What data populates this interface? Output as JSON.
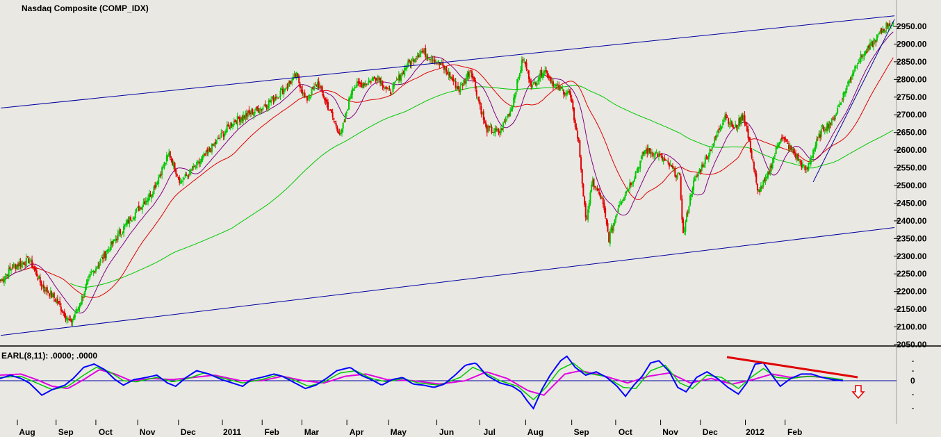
{
  "chart_data": [
    {
      "type": "candlestick",
      "title": "Nasdaq Composite (COMP_IDX)",
      "ylim": [
        2050,
        3000
      ],
      "y_ticks": [
        "2050.00",
        "2100.00",
        "2150.00",
        "2200.00",
        "2250.00",
        "2300.00",
        "2350.00",
        "2400.00",
        "2450.00",
        "2500.00",
        "2550.00",
        "2600.00",
        "2650.00",
        "2700.00",
        "2750.00",
        "2800.00",
        "2850.00",
        "2900.00",
        "2950.00"
      ],
      "y_tick_values": [
        2050,
        2100,
        2150,
        2200,
        2250,
        2300,
        2350,
        2400,
        2450,
        2500,
        2550,
        2600,
        2650,
        2700,
        2750,
        2800,
        2850,
        2900,
        2950
      ],
      "x_months": [
        "Aug",
        "Sep",
        "Oct",
        "Nov",
        "Dec",
        "2011",
        "Feb",
        "Mar",
        "Apr",
        "May",
        "Jun",
        "Jul",
        "Aug",
        "Sep",
        "Oct",
        "Nov",
        "Dec",
        "2012",
        "Feb"
      ],
      "x_month_index": [
        10,
        47,
        85,
        125,
        164,
        206,
        244,
        282,
        325,
        365,
        411,
        452,
        496,
        540,
        582,
        625,
        663,
        706,
        744
      ],
      "bars": 770,
      "colors": {
        "up": "#00c800",
        "down": "#e00000",
        "ma_fast": "#800080",
        "ma_mid": "#e00000",
        "ma_slow": "#00c800",
        "trendline": "#0000a0"
      },
      "close_path": [
        [
          0,
          2230
        ],
        [
          10,
          2270
        ],
        [
          25,
          2290
        ],
        [
          35,
          2220
        ],
        [
          48,
          2175
        ],
        [
          60,
          2110
        ],
        [
          66,
          2150
        ],
        [
          78,
          2250
        ],
        [
          95,
          2330
        ],
        [
          110,
          2400
        ],
        [
          130,
          2480
        ],
        [
          145,
          2590
        ],
        [
          155,
          2510
        ],
        [
          170,
          2560
        ],
        [
          185,
          2620
        ],
        [
          200,
          2680
        ],
        [
          212,
          2700
        ],
        [
          225,
          2720
        ],
        [
          240,
          2760
        ],
        [
          255,
          2810
        ],
        [
          263,
          2740
        ],
        [
          273,
          2790
        ],
        [
          285,
          2700
        ],
        [
          293,
          2640
        ],
        [
          303,
          2780
        ],
        [
          315,
          2790
        ],
        [
          325,
          2810
        ],
        [
          335,
          2760
        ],
        [
          350,
          2840
        ],
        [
          362,
          2880
        ],
        [
          373,
          2860
        ],
        [
          385,
          2820
        ],
        [
          395,
          2770
        ],
        [
          405,
          2830
        ],
        [
          418,
          2660
        ],
        [
          430,
          2650
        ],
        [
          440,
          2720
        ],
        [
          450,
          2860
        ],
        [
          458,
          2780
        ],
        [
          468,
          2830
        ],
        [
          478,
          2780
        ],
        [
          490,
          2760
        ],
        [
          498,
          2620
        ],
        [
          504,
          2400
        ],
        [
          510,
          2510
        ],
        [
          518,
          2460
        ],
        [
          524,
          2350
        ],
        [
          533,
          2450
        ],
        [
          545,
          2520
        ],
        [
          555,
          2600
        ],
        [
          565,
          2590
        ],
        [
          575,
          2560
        ],
        [
          585,
          2520
        ],
        [
          588,
          2360
        ],
        [
          596,
          2500
        ],
        [
          605,
          2560
        ],
        [
          614,
          2620
        ],
        [
          624,
          2700
        ],
        [
          632,
          2660
        ],
        [
          640,
          2700
        ],
        [
          648,
          2570
        ],
        [
          652,
          2480
        ],
        [
          660,
          2520
        ],
        [
          672,
          2640
        ],
        [
          684,
          2590
        ],
        [
          694,
          2540
        ],
        [
          700,
          2600
        ],
        [
          708,
          2660
        ],
        [
          716,
          2680
        ],
        [
          724,
          2740
        ],
        [
          730,
          2790
        ],
        [
          738,
          2850
        ],
        [
          746,
          2880
        ],
        [
          753,
          2910
        ],
        [
          760,
          2940
        ],
        [
          765,
          2960
        ],
        [
          770,
          2950
        ]
      ],
      "trendlines": [
        {
          "from": [
            0,
            2719
          ],
          "to": [
            770,
            2980
          ],
          "label": "upper channel"
        },
        {
          "from": [
            0,
            2076
          ],
          "to": [
            770,
            2381
          ],
          "label": "lower channel"
        },
        {
          "from": [
            700,
            2510
          ],
          "to": [
            770,
            2970
          ],
          "label": "short-term uptrend"
        }
      ]
    },
    {
      "type": "line",
      "title": "EARL(8,11): .0000; .0000",
      "zero_label": "0",
      "side_ticks": [
        ".",
        ".",
        ".",
        "."
      ],
      "colors": {
        "fast": "#0000ff",
        "slow": "#00c800",
        "signal": "#e000e0",
        "zero": "#0000a0",
        "divergence": "#e00000",
        "arrow": "#e00000"
      },
      "fast_path": [
        [
          0,
          0.2
        ],
        [
          10,
          0.5
        ],
        [
          20,
          0.2
        ],
        [
          28,
          -0.2
        ],
        [
          40,
          -1.3
        ],
        [
          50,
          -0.8
        ],
        [
          62,
          -0.4
        ],
        [
          70,
          0.2
        ],
        [
          80,
          1.2
        ],
        [
          90,
          1.5
        ],
        [
          100,
          1.0
        ],
        [
          110,
          0.1
        ],
        [
          118,
          -0.4
        ],
        [
          128,
          0.1
        ],
        [
          140,
          0.3
        ],
        [
          150,
          0.5
        ],
        [
          160,
          -0.2
        ],
        [
          168,
          -0.5
        ],
        [
          178,
          0.3
        ],
        [
          188,
          0.9
        ],
        [
          200,
          0.6
        ],
        [
          212,
          0.1
        ],
        [
          222,
          -0.2
        ],
        [
          232,
          -0.5
        ],
        [
          240,
          0.1
        ],
        [
          250,
          0.3
        ],
        [
          262,
          0.6
        ],
        [
          270,
          0.4
        ],
        [
          282,
          -0.2
        ],
        [
          292,
          -0.7
        ],
        [
          302,
          -0.4
        ],
        [
          312,
          0.2
        ],
        [
          322,
          0.9
        ],
        [
          335,
          1.2
        ],
        [
          345,
          0.5
        ],
        [
          355,
          0.1
        ],
        [
          365,
          -0.4
        ],
        [
          375,
          0.1
        ],
        [
          385,
          0.3
        ],
        [
          395,
          -0.3
        ],
        [
          405,
          -0.4
        ],
        [
          415,
          -0.6
        ],
        [
          425,
          -0.3
        ],
        [
          435,
          0.5
        ],
        [
          445,
          1.4
        ],
        [
          455,
          1.6
        ],
        [
          465,
          0.5
        ],
        [
          478,
          -0.2
        ],
        [
          490,
          -0.5
        ],
        [
          498,
          -1.0
        ],
        [
          504,
          -1.8
        ],
        [
          510,
          -2.5
        ],
        [
          518,
          -0.8
        ],
        [
          526,
          0.5
        ],
        [
          536,
          1.8
        ],
        [
          542,
          2.2
        ],
        [
          550,
          1.2
        ],
        [
          560,
          0.5
        ],
        [
          570,
          0.8
        ],
        [
          580,
          0.3
        ],
        [
          590,
          -0.5
        ],
        [
          598,
          -1.4
        ],
        [
          606,
          -0.4
        ],
        [
          614,
          0.4
        ],
        [
          622,
          1.6
        ],
        [
          630,
          1.8
        ],
        [
          640,
          0.8
        ],
        [
          648,
          -0.6
        ],
        [
          656,
          -1.0
        ],
        [
          666,
          0.3
        ],
        [
          676,
          0.8
        ],
        [
          686,
          0.2
        ],
        [
          696,
          -0.6
        ],
        [
          706,
          -1.2
        ],
        [
          714,
          -0.2
        ],
        [
          722,
          1.5
        ],
        [
          730,
          1.6
        ],
        [
          738,
          0.5
        ],
        [
          746,
          -0.5
        ],
        [
          756,
          0.2
        ],
        [
          766,
          0.6
        ],
        [
          776,
          0.6
        ],
        [
          786,
          0.3
        ],
        [
          796,
          0.1
        ],
        [
          806,
          0.0
        ]
      ],
      "slow_path": [
        [
          0,
          0.3
        ],
        [
          20,
          0.4
        ],
        [
          35,
          -0.2
        ],
        [
          50,
          -0.8
        ],
        [
          65,
          -0.5
        ],
        [
          80,
          0.5
        ],
        [
          92,
          1.2
        ],
        [
          105,
          0.8
        ],
        [
          118,
          0.0
        ],
        [
          130,
          -0.1
        ],
        [
          150,
          0.3
        ],
        [
          165,
          -0.1
        ],
        [
          180,
          0.2
        ],
        [
          195,
          0.7
        ],
        [
          210,
          0.3
        ],
        [
          232,
          -0.2
        ],
        [
          250,
          0.1
        ],
        [
          265,
          0.5
        ],
        [
          280,
          0.1
        ],
        [
          295,
          -0.5
        ],
        [
          310,
          -0.1
        ],
        [
          325,
          0.7
        ],
        [
          340,
          0.9
        ],
        [
          355,
          0.2
        ],
        [
          370,
          -0.1
        ],
        [
          385,
          0.2
        ],
        [
          400,
          -0.2
        ],
        [
          420,
          -0.4
        ],
        [
          440,
          0.3
        ],
        [
          452,
          1.2
        ],
        [
          462,
          0.8
        ],
        [
          478,
          0.0
        ],
        [
          495,
          -0.5
        ],
        [
          510,
          -1.7
        ],
        [
          522,
          -0.6
        ],
        [
          535,
          1.0
        ],
        [
          548,
          1.6
        ],
        [
          560,
          0.7
        ],
        [
          578,
          0.4
        ],
        [
          596,
          -0.6
        ],
        [
          608,
          -0.7
        ],
        [
          622,
          0.9
        ],
        [
          636,
          1.4
        ],
        [
          650,
          -0.2
        ],
        [
          662,
          -0.7
        ],
        [
          676,
          0.5
        ],
        [
          690,
          0.3
        ],
        [
          706,
          -0.7
        ],
        [
          718,
          0.3
        ],
        [
          730,
          1.1
        ],
        [
          742,
          0.3
        ],
        [
          756,
          0.2
        ],
        [
          772,
          0.4
        ],
        [
          790,
          0.3
        ],
        [
          806,
          0.1
        ]
      ],
      "signal_path": [
        [
          0,
          0.5
        ],
        [
          20,
          0.6
        ],
        [
          35,
          0.1
        ],
        [
          50,
          -0.5
        ],
        [
          65,
          -0.7
        ],
        [
          80,
          0.1
        ],
        [
          95,
          1.0
        ],
        [
          110,
          0.6
        ],
        [
          125,
          0.0
        ],
        [
          145,
          0.2
        ],
        [
          165,
          0.1
        ],
        [
          185,
          0.3
        ],
        [
          205,
          0.5
        ],
        [
          230,
          0.0
        ],
        [
          250,
          0.0
        ],
        [
          270,
          0.4
        ],
        [
          290,
          0.0
        ],
        [
          310,
          -0.2
        ],
        [
          330,
          0.4
        ],
        [
          350,
          0.6
        ],
        [
          370,
          0.1
        ],
        [
          395,
          0.0
        ],
        [
          420,
          -0.3
        ],
        [
          445,
          0.0
        ],
        [
          465,
          0.8
        ],
        [
          485,
          0.2
        ],
        [
          505,
          -0.9
        ],
        [
          520,
          -1.3
        ],
        [
          540,
          0.6
        ],
        [
          555,
          0.9
        ],
        [
          575,
          0.5
        ],
        [
          600,
          -0.2
        ],
        [
          620,
          0.4
        ],
        [
          640,
          0.7
        ],
        [
          660,
          -0.2
        ],
        [
          680,
          0.2
        ],
        [
          700,
          -0.3
        ],
        [
          720,
          0.1
        ],
        [
          738,
          0.6
        ],
        [
          756,
          0.3
        ],
        [
          776,
          0.4
        ],
        [
          796,
          0.2
        ],
        [
          806,
          0.0
        ]
      ],
      "divergence_line": {
        "from": [
          690,
          2.2
        ],
        "to": [
          806,
          0.3
        ]
      },
      "scale": [
        -3,
        3
      ]
    }
  ]
}
